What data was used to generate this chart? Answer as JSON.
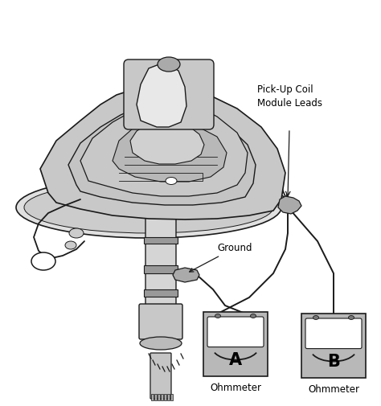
{
  "background_color": "#ffffff",
  "annotation_pickup_coil": "Pick-Up Coil\nModule Leads",
  "annotation_ground": "Ground",
  "label_a": "A",
  "label_b": "B",
  "label_ohmmeter_a": "Ohmmeter",
  "label_ohmmeter_b": "Ohmmeter",
  "fig_width": 4.74,
  "fig_height": 5.05,
  "dpi": 100,
  "line_color": "#1a1a1a",
  "meter_bg": "#b8b8b8",
  "meter_face": "#ffffff",
  "text_color": "#000000",
  "stipple_color": "#c8c8c8",
  "dark_gray": "#555555",
  "mid_gray": "#888888",
  "light_gray": "#d8d8d8"
}
